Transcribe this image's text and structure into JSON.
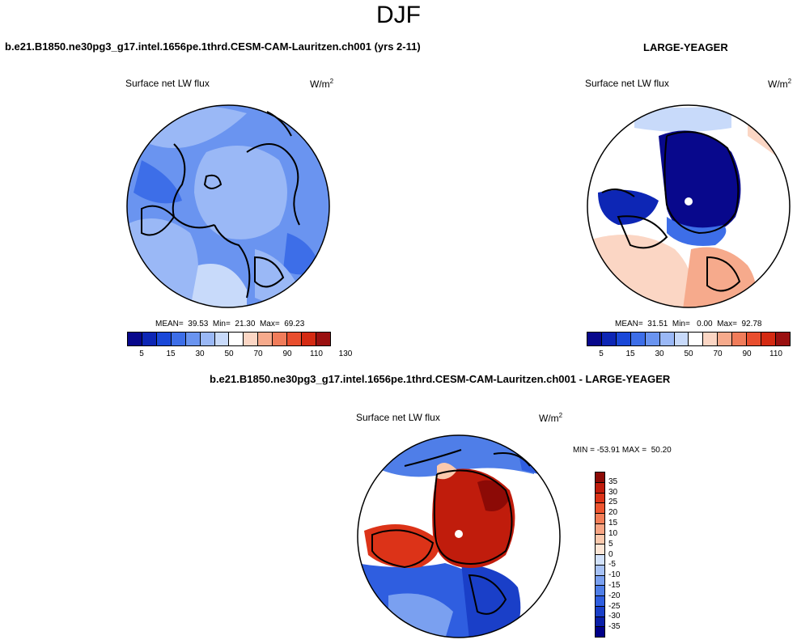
{
  "season": "DJF",
  "case_name": "b.e21.B1850.ne30pg3_g17.intel.1656pe.1thrd.CESM-CAM-Lauritzen.ch001 (yrs 2-11)",
  "ref_name": "LARGE-YEAGER",
  "diff_name": "b.e21.B1850.ne30pg3_g17.intel.1656pe.1thrd.CESM-CAM-Lauritzen.ch001 - LARGE-YEAGER",
  "panels": {
    "case": {
      "variable": "Surface net LW flux",
      "units": "W/m",
      "units_exp": "2",
      "stats": "MEAN=  39.53  Min=  21.30  Max=  69.23"
    },
    "ref": {
      "variable": "Surface net LW flux",
      "units": "W/m",
      "units_exp": "2",
      "stats": "MEAN=  31.51  Min=   0.00  Max=  92.78"
    },
    "diff": {
      "variable": "Surface net LW flux",
      "units": "W/m",
      "units_exp": "2",
      "stats": "MIN = -53.91 MAX =  50.20"
    }
  },
  "abs_colorbar": {
    "colors": [
      "#08088c",
      "#0d26b5",
      "#1a48d8",
      "#3d6ee8",
      "#6a94f0",
      "#9ab8f6",
      "#c8dafa",
      "#ffffff",
      "#fbd6c4",
      "#f6aa8c",
      "#f07c5a",
      "#e84e2e",
      "#d42a12",
      "#9a1010"
    ],
    "ticks": [
      "5",
      "15",
      "30",
      "50",
      "70",
      "90",
      "110",
      "130"
    ]
  },
  "diff_colorbar": {
    "colors": [
      "#000088",
      "#0a1fa8",
      "#1a3fc8",
      "#2f5ee0",
      "#4f7ee8",
      "#7aa0f0",
      "#a7c2f6",
      "#d2e2fb",
      "#fde6d6",
      "#fbc9ad",
      "#f8a584",
      "#f47e58",
      "#ee5530",
      "#dc3318",
      "#c01c0c",
      "#8c0a06"
    ],
    "ticks": [
      "35",
      "30",
      "25",
      "20",
      "15",
      "10",
      "5",
      "0",
      "-5",
      "-10",
      "-15",
      "-20",
      "-25",
      "-30",
      "-35"
    ]
  }
}
